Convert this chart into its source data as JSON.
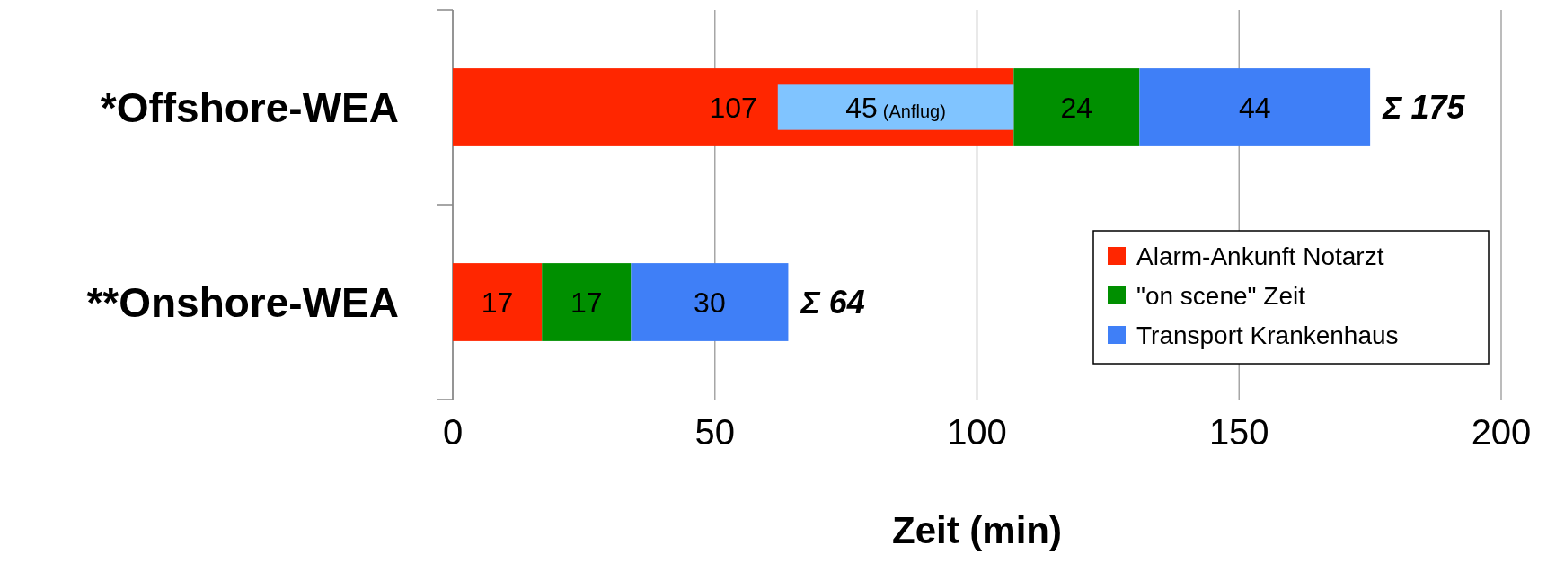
{
  "chart_data": {
    "type": "bar",
    "orientation": "horizontal",
    "categories": [
      "*Offshore-WEA",
      "**Onshore-WEA"
    ],
    "series": [
      {
        "name": "Alarm-Ankunft Notarzt",
        "color": "#ff2600",
        "values": [
          107,
          17
        ],
        "base": [
          0,
          0
        ]
      },
      {
        "name": "\"on scene\" Zeit",
        "color": "#008f00",
        "values": [
          24,
          17
        ],
        "base": [
          107,
          17
        ]
      },
      {
        "name": "Transport Krankenhaus",
        "color": "#3f7ff7",
        "values": [
          44,
          30
        ],
        "base": [
          131,
          34
        ]
      },
      {
        "color": "#80c4ff",
        "values": [
          45,
          null
        ],
        "base": [
          62,
          null
        ],
        "value_labels": [
          "45 (Anflug)",
          null
        ]
      }
    ],
    "xlim": [
      0,
      200
    ],
    "xticks": [
      0,
      50,
      100,
      150,
      200
    ],
    "xlabel": "Zeit (min)",
    "grid": "x",
    "legend": "bottom right",
    "data_labels": true,
    "totals": [
      "Σ 175",
      "Σ 64"
    ]
  }
}
